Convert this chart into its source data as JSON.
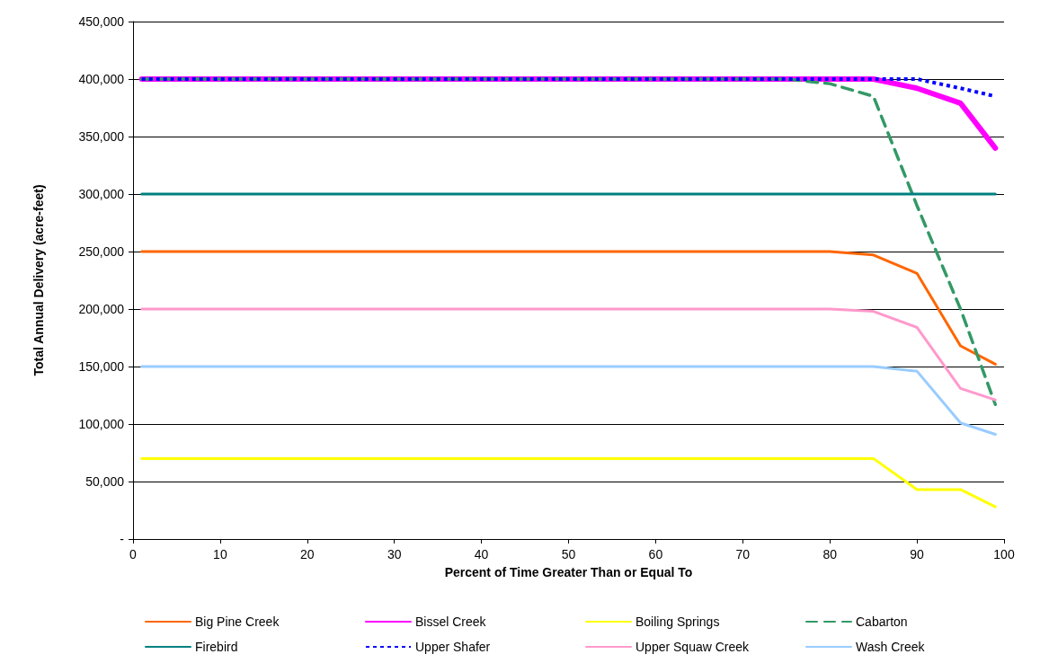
{
  "chart_data": {
    "type": "line",
    "xlabel": "Percent of Time Greater Than or Equal To",
    "ylabel": "Total Annual Delivery (acre-feet)",
    "x": [
      1,
      75,
      80,
      85,
      90,
      95,
      99
    ],
    "xlim": [
      0,
      100
    ],
    "xticks": [
      0,
      10,
      20,
      30,
      40,
      50,
      60,
      70,
      80,
      90,
      100
    ],
    "ylim": [
      0,
      450000
    ],
    "yticks": [
      {
        "value": 0,
        "label": "-"
      },
      {
        "value": 50000,
        "label": "50,000"
      },
      {
        "value": 100000,
        "label": "100,000"
      },
      {
        "value": 150000,
        "label": "150,000"
      },
      {
        "value": 200000,
        "label": "200,000"
      },
      {
        "value": 250000,
        "label": "250,000"
      },
      {
        "value": 300000,
        "label": "300,000"
      },
      {
        "value": 350000,
        "label": "350,000"
      },
      {
        "value": 400000,
        "label": "400,000"
      },
      {
        "value": 450000,
        "label": "450,000"
      }
    ],
    "grid": "y",
    "legend": "bottom",
    "marker": "none",
    "series": [
      {
        "name": "Big Pine Creek",
        "color": "#ff6600",
        "values": [
          250000,
          250000,
          250000,
          247000,
          231000,
          168000,
          152000
        ]
      },
      {
        "name": "Bissel Creek",
        "color": "#ff00ff",
        "values": [
          400000,
          400000,
          400000,
          400000,
          392000,
          379000,
          340000
        ]
      },
      {
        "name": "Boiling Springs",
        "color": "#ffff00",
        "values": [
          70000,
          70000,
          70000,
          70000,
          43000,
          43000,
          28000
        ]
      },
      {
        "name": "Cabarton",
        "color": "#339966",
        "line_style": "dashed",
        "values": [
          400000,
          400000,
          396000,
          385000,
          290000,
          200000,
          117000
        ]
      },
      {
        "name": "Firebird",
        "color": "#008080",
        "values": [
          300000,
          300000,
          300000,
          300000,
          300000,
          300000,
          300000
        ]
      },
      {
        "name": "Upper Shafer",
        "color": "#0000ff",
        "line_style": "dotted",
        "values": [
          400000,
          400000,
          400000,
          400000,
          400000,
          392000,
          385000
        ]
      },
      {
        "name": "Upper Squaw Creek",
        "color": "#ff99cc",
        "values": [
          200000,
          200000,
          200000,
          198000,
          184000,
          131000,
          121000
        ]
      },
      {
        "name": "Wash Creek",
        "color": "#99ccff",
        "values": [
          150000,
          150000,
          150000,
          150000,
          146000,
          101000,
          91000
        ]
      }
    ]
  }
}
